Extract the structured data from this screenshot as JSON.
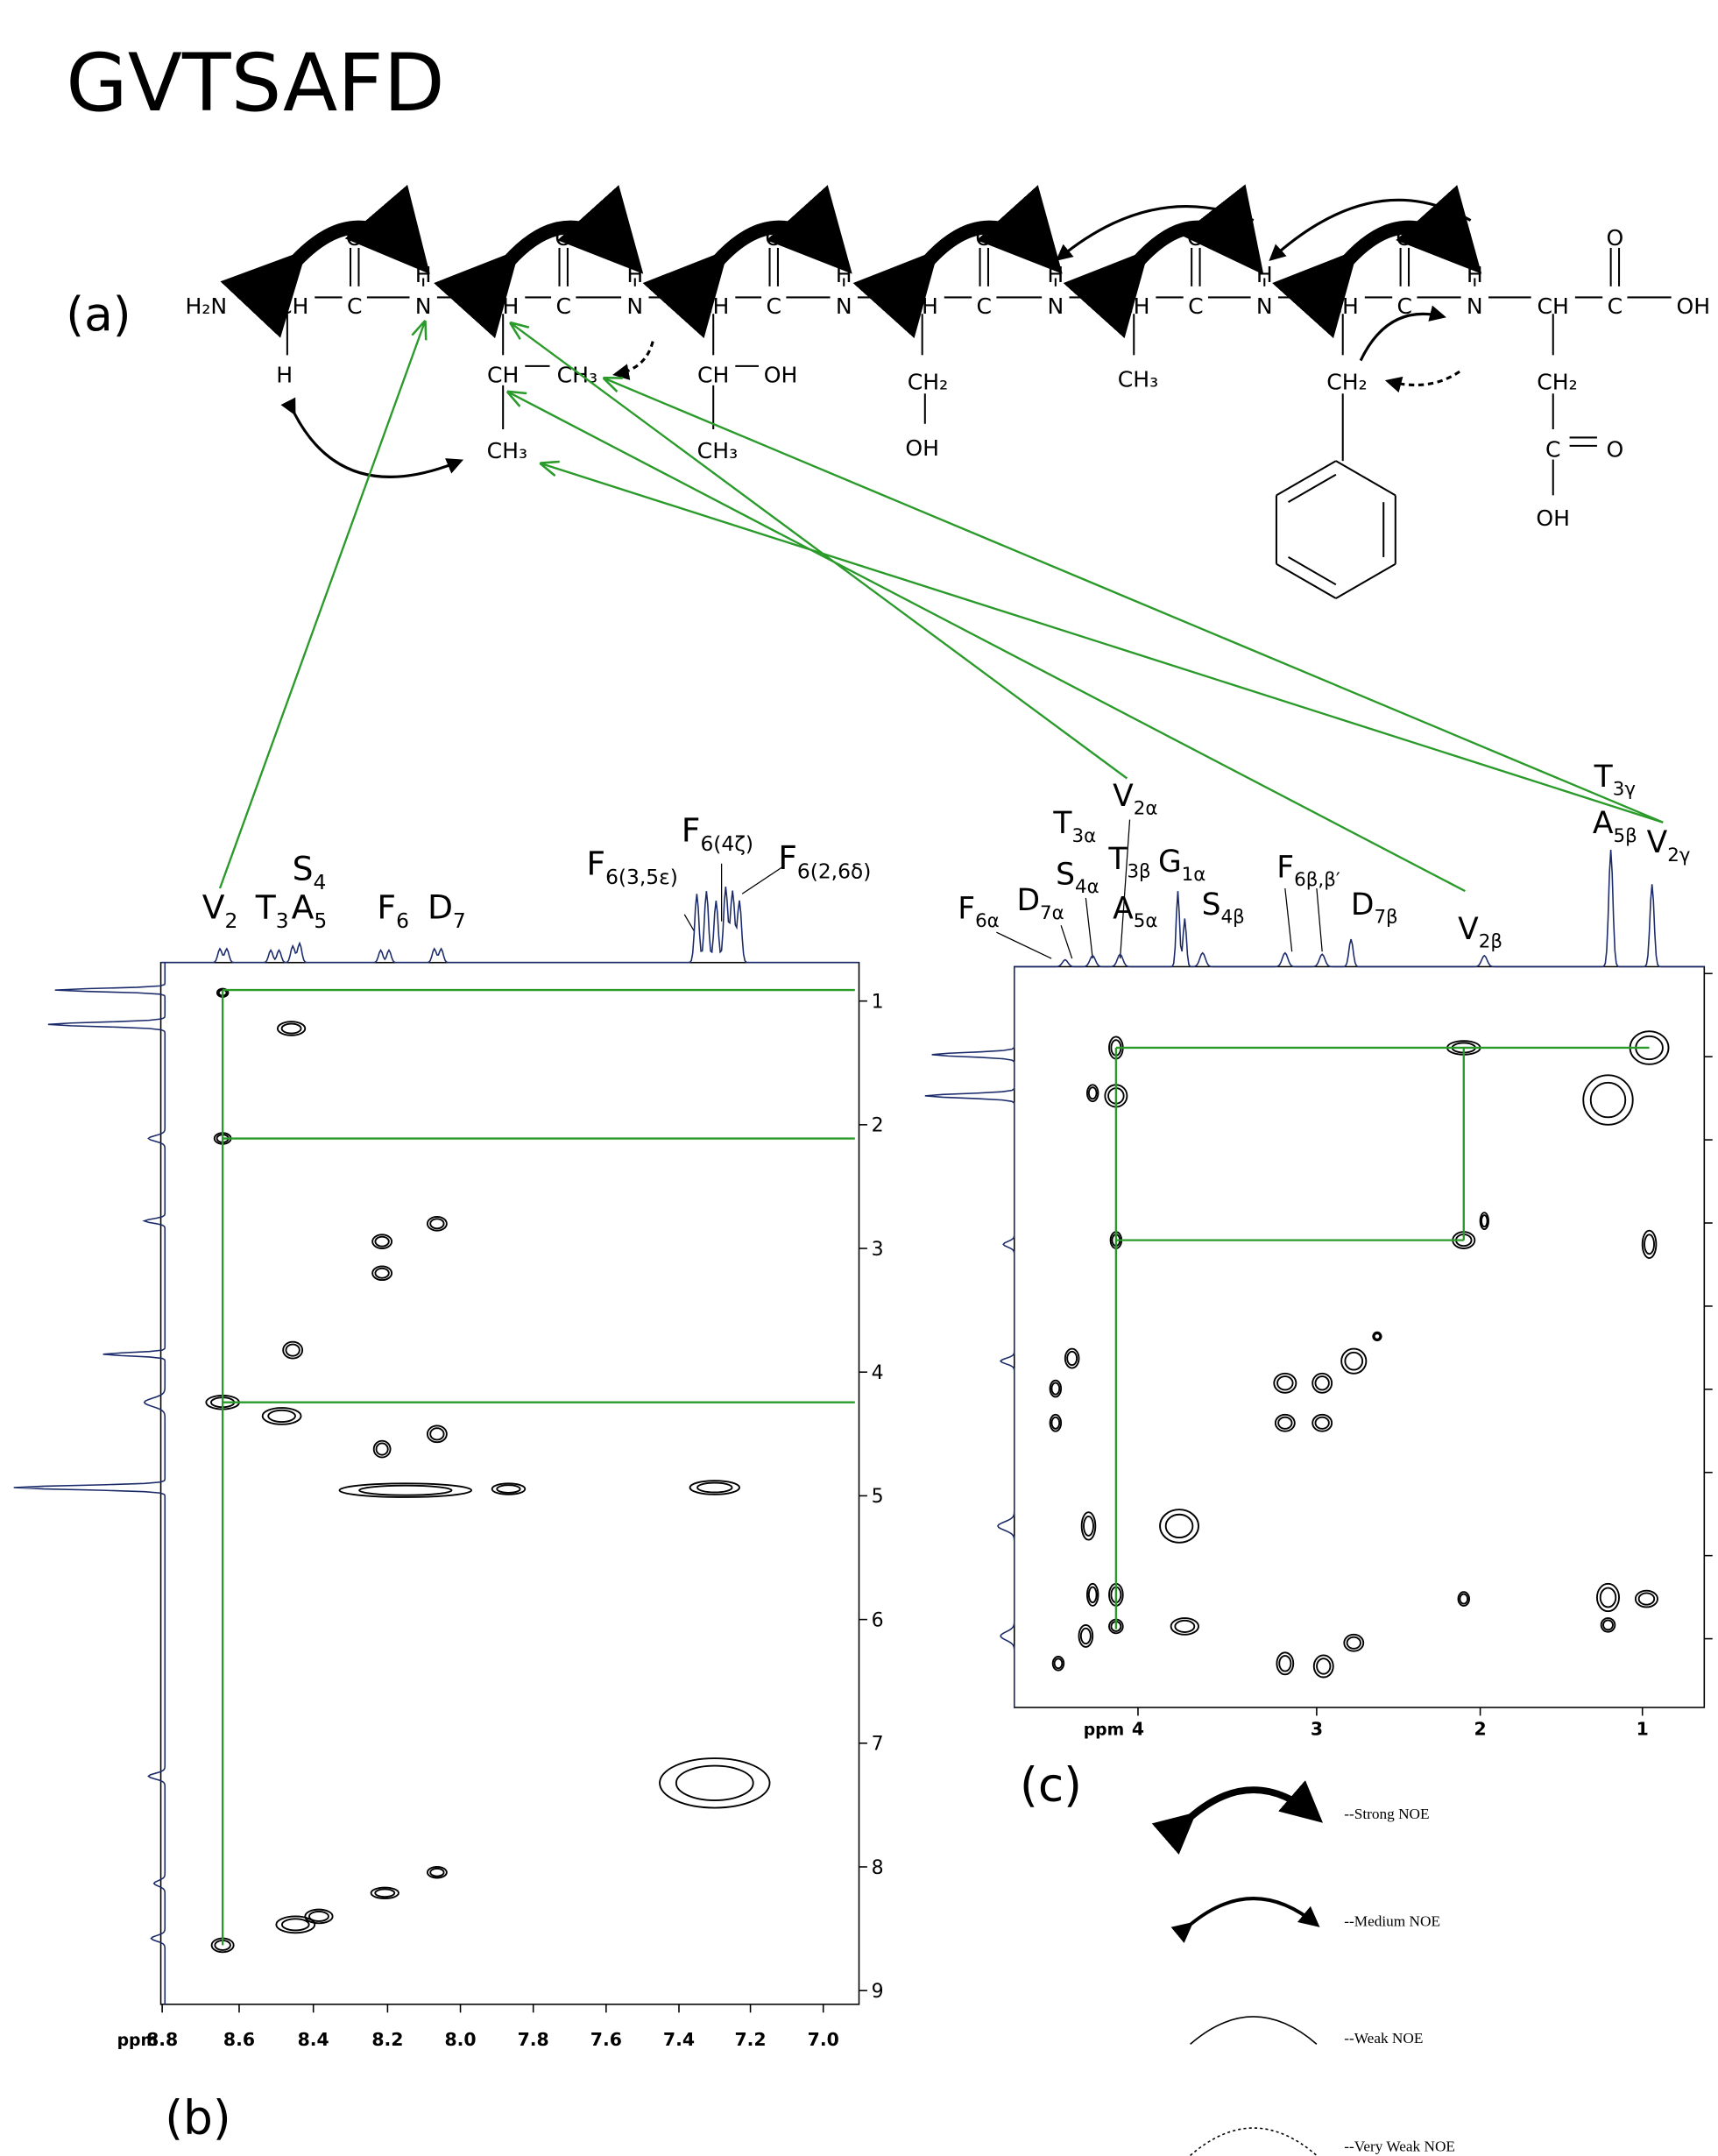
{
  "title": "GVTSAFD",
  "panels": {
    "a": "(a)",
    "b": "(b)",
    "c": "(c)"
  },
  "structure": {
    "atoms": [
      "H₂N",
      "CH",
      "C",
      "O",
      "H",
      "N",
      "CH",
      "C",
      "O",
      "H",
      "N",
      "CH",
      "C",
      "O",
      "H",
      "N",
      "CH",
      "C",
      "O",
      "H",
      "N",
      "CH",
      "C",
      "O",
      "H",
      "N",
      "CH",
      "C",
      "O",
      "H",
      "N",
      "CH",
      "C",
      "O",
      "OH",
      "H",
      "CH",
      "CH₃",
      "CH₃",
      "CH",
      "OH",
      "CH₃",
      "CH₂",
      "OH",
      "CH₃",
      "CH₂",
      "CH₂",
      "C",
      "O",
      "OH"
    ]
  },
  "spectra": {
    "b": {
      "peaks": [
        {
          "base": "V",
          "sub": "2"
        },
        {
          "base": "T",
          "sub": "3"
        },
        {
          "base": "S",
          "sub": "4"
        },
        {
          "base": "A",
          "sub": "5"
        },
        {
          "base": "F",
          "sub": "6"
        },
        {
          "base": "D",
          "sub": "7"
        },
        {
          "base": "F",
          "sub": "6(3,5ε)"
        },
        {
          "base": "F",
          "sub": "6(4ζ)"
        },
        {
          "base": "F",
          "sub": "6(2,6δ)"
        }
      ],
      "x_unit": "ppm",
      "x_ticks": [
        "8.8",
        "8.6",
        "8.4",
        "8.2",
        "8.0",
        "7.8",
        "7.6",
        "7.4",
        "7.2",
        "7.0"
      ],
      "y_ticks": [
        "1",
        "2",
        "3",
        "4",
        "5",
        "6",
        "7",
        "8",
        "9"
      ]
    },
    "c": {
      "peaks": [
        {
          "base": "F",
          "sub": "6α"
        },
        {
          "base": "D",
          "sub": "7α"
        },
        {
          "base": "T",
          "sub": "3α"
        },
        {
          "base": "S",
          "sub": "4α"
        },
        {
          "base": "V",
          "sub": "2α"
        },
        {
          "base": "T",
          "sub": "3β"
        },
        {
          "base": "G",
          "sub": "1α"
        },
        {
          "base": "A",
          "sub": "5α"
        },
        {
          "base": "F",
          "sub": "6β,β′"
        },
        {
          "base": "S",
          "sub": "4β"
        },
        {
          "base": "D",
          "sub": "7β"
        },
        {
          "base": "V",
          "sub": "2β"
        },
        {
          "base": "T",
          "sub": "3γ"
        },
        {
          "base": "A",
          "sub": "5β"
        },
        {
          "base": "V",
          "sub": "2γ"
        }
      ],
      "x_unit": "ppm",
      "x_ticks": [
        "4",
        "3",
        "2",
        "1"
      ]
    }
  },
  "legend": [
    "--Strong NOE",
    "--Medium NOE",
    "--Weak NOE",
    "--Very Weak NOE"
  ]
}
